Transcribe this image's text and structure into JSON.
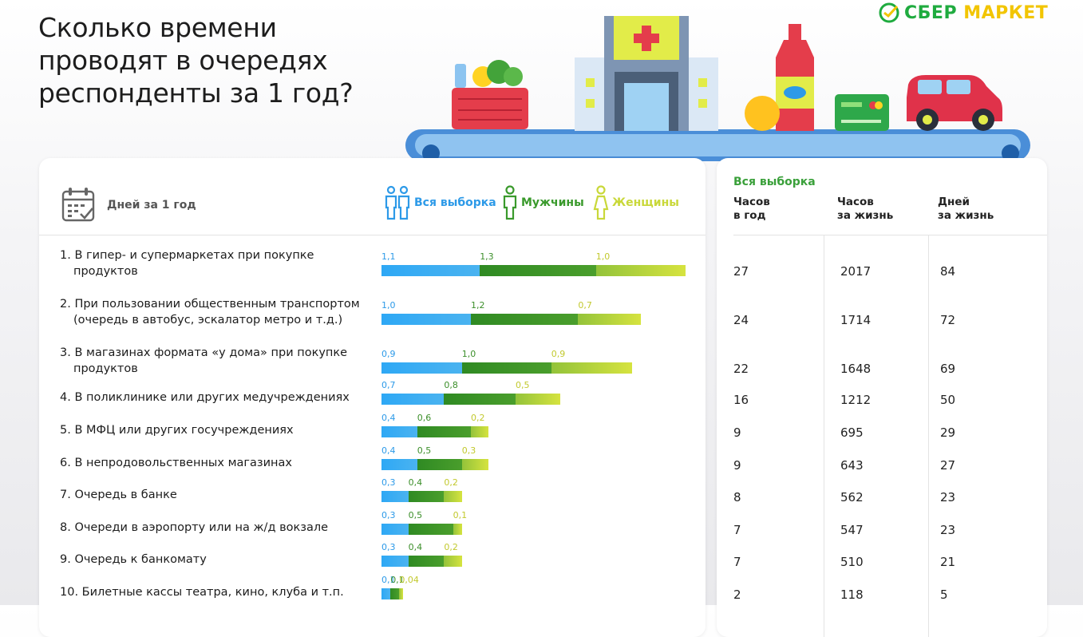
{
  "title": "Сколько времени проводят в очередях респонденты за 1 год?",
  "logo": {
    "brand": "СБЕР",
    "product": "МАРКЕТ"
  },
  "colors": {
    "all": "#2d9ae8",
    "men": "#3a9a2c",
    "women": "#c9d83a",
    "brand_green": "#1fab3f"
  },
  "left_header": {
    "icon": "calendar-check-icon",
    "label": "Дней за 1 год"
  },
  "legend": [
    {
      "key": "all",
      "label": "Вся выборка",
      "icon": "people-icon"
    },
    {
      "key": "men",
      "label": "Мужчины",
      "icon": "man-icon"
    },
    {
      "key": "women",
      "label": "Женщины",
      "icon": "woman-icon"
    }
  ],
  "right_panel": {
    "title": "Вся выборка",
    "headers": [
      [
        "Часов",
        "в год"
      ],
      [
        "Часов",
        "за жизнь"
      ],
      [
        "Дней",
        "за жизнь"
      ]
    ]
  },
  "chart_data": {
    "type": "bar",
    "stacked": true,
    "orientation": "horizontal",
    "unit": "Дней за 1 год",
    "categories": [
      [
        "1. В гипер- и супермаркетах при покупке",
        "продуктов"
      ],
      [
        "2. При пользовании общественным транспортом",
        "(очередь в автобус, эскалатор метро и т.д.)"
      ],
      [
        "3. В магазинах формата «у дома» при покупке",
        "продуктов"
      ],
      [
        "4. В поликлинике или других медучреждениях"
      ],
      [
        "5. В МФЦ или других госучреждениях"
      ],
      [
        "6. В непродовольственных магазинах"
      ],
      [
        "7. Очередь в банке"
      ],
      [
        "8. Очереди в аэропорту или на ж/д вокзале"
      ],
      [
        "9. Очередь к банкомату"
      ],
      [
        "10. Билетные кассы театра, кино, клуба и т.п."
      ]
    ],
    "series": [
      {
        "name": "Вся выборка",
        "values": [
          1.1,
          1.0,
          0.9,
          0.7,
          0.4,
          0.4,
          0.3,
          0.3,
          0.3,
          0.1
        ],
        "labels": [
          "1,1",
          "1,0",
          "0,9",
          "0,7",
          "0,4",
          "0,4",
          "0,3",
          "0,3",
          "0,3",
          "0,1"
        ]
      },
      {
        "name": "Мужчины",
        "values": [
          1.3,
          1.2,
          1.0,
          0.8,
          0.6,
          0.5,
          0.4,
          0.5,
          0.4,
          0.1
        ],
        "labels": [
          "1,3",
          "1,2",
          "1,0",
          "0,8",
          "0,6",
          "0,5",
          "0,4",
          "0,5",
          "0,4",
          "0,1"
        ]
      },
      {
        "name": "Женщины",
        "values": [
          1.0,
          0.7,
          0.9,
          0.5,
          0.2,
          0.3,
          0.2,
          0.1,
          0.2,
          0.04
        ],
        "labels": [
          "1,0",
          "0,7",
          "0,9",
          "0,5",
          "0,2",
          "0,3",
          "0,2",
          "0,1",
          "0,2",
          "0,04"
        ]
      }
    ],
    "table": {
      "hours_per_year": [
        "27",
        "24",
        "22",
        "16",
        "9",
        "9",
        "8",
        "7",
        "7",
        "2"
      ],
      "hours_lifetime": [
        "2017",
        "1714",
        "1648",
        "1212",
        "695",
        "643",
        "562",
        "547",
        "510",
        "118"
      ],
      "days_lifetime": [
        "84",
        "72",
        "69",
        "50",
        "29",
        "27",
        "23",
        "23",
        "21",
        "5"
      ]
    }
  }
}
